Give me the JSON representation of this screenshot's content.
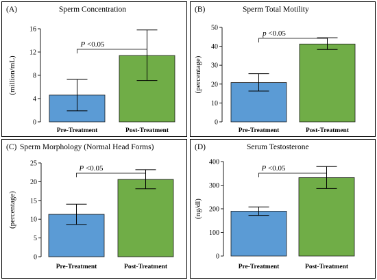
{
  "chart_data": [
    {
      "type": "bar",
      "letter": "(A)",
      "title": "Sperm Concentration",
      "ylabel": "(million/mL)",
      "ylim": [
        0,
        16
      ],
      "yticks": [
        0,
        4,
        8,
        12,
        16
      ],
      "categories": [
        "Pre-Treatment",
        "Post-Treatment"
      ],
      "values": [
        4.6,
        11.4
      ],
      "error_low": [
        1.9,
        7.1
      ],
      "error_high": [
        7.3,
        15.8
      ],
      "bar_colors": [
        "#5b9bd5",
        "#70ad47"
      ],
      "significance": {
        "italic": "P",
        "rest": " <0.05"
      }
    },
    {
      "type": "bar",
      "letter": "(B)",
      "title": "Sperm Total Motility",
      "ylabel": "(percentage)",
      "ylim": [
        0,
        50
      ],
      "yticks": [
        0,
        10,
        20,
        30,
        40,
        50
      ],
      "categories": [
        "Pre-Treatment",
        "Post-Treatment"
      ],
      "values": [
        20.8,
        41.2
      ],
      "error_low": [
        16.3,
        38.3
      ],
      "error_high": [
        25.5,
        44.5
      ],
      "bar_colors": [
        "#5b9bd5",
        "#70ad47"
      ],
      "significance": {
        "italic": "p",
        "rest": " <0.05"
      }
    },
    {
      "type": "bar",
      "letter": "(C)",
      "title": "Sperm Morphology (Normal Head Forms)",
      "ylabel": "(percentage)",
      "ylim": [
        0,
        25
      ],
      "yticks": [
        0,
        5,
        10,
        15,
        20,
        25
      ],
      "categories": [
        "Pre-Treatment",
        "Post-Treatment"
      ],
      "values": [
        11.3,
        20.6
      ],
      "error_low": [
        8.6,
        18.1
      ],
      "error_high": [
        14.0,
        23.2
      ],
      "bar_colors": [
        "#5b9bd5",
        "#70ad47"
      ],
      "significance": {
        "italic": "P",
        "rest": " <0.05"
      }
    },
    {
      "type": "bar",
      "letter": "(D)",
      "title": "Serum Testosterone",
      "ylabel": "(ng/dl)",
      "ylim": [
        0,
        400
      ],
      "yticks": [
        0,
        100,
        200,
        300,
        400
      ],
      "categories": [
        "Pre-Treatment",
        "Post-Treatment"
      ],
      "values": [
        190,
        332
      ],
      "error_low": [
        172,
        286
      ],
      "error_high": [
        208,
        379
      ],
      "bar_colors": [
        "#5b9bd5",
        "#70ad47"
      ],
      "significance": {
        "italic": "P",
        "rest": " <0.05"
      }
    }
  ]
}
